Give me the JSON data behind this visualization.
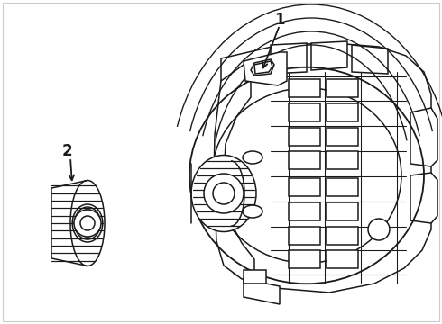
{
  "background_color": "#ffffff",
  "line_color": "#1a1a1a",
  "line_width": 1.1,
  "label1": "1",
  "label2": "2",
  "border_color": "#cccccc"
}
